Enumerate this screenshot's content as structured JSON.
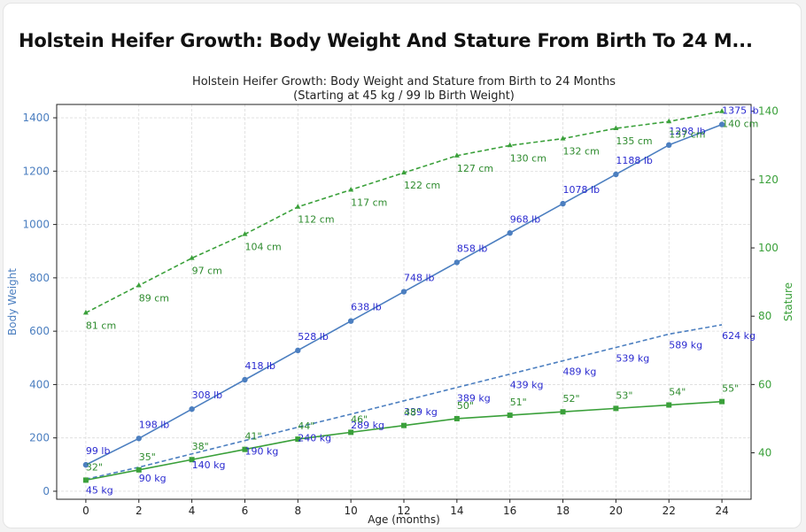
{
  "card": {
    "title": "Holstein Heifer Growth: Body Weight And Stature From Birth To 24 M..."
  },
  "colors": {
    "weight": "#4c7fc0",
    "stature": "#3aa03a",
    "point_label": "#2b2bd0",
    "stature_label": "#2e8b2e"
  },
  "chart_data": {
    "type": "line",
    "title": "Holstein Heifer Growth: Body Weight and Stature from Birth to 24 Months",
    "subtitle": "(Starting at 45 kg / 99 lb Birth Weight)",
    "xlabel": "Age (months)",
    "ylabel_left": "Body Weight",
    "ylabel_right": "Stature",
    "x": [
      0,
      2,
      4,
      6,
      8,
      10,
      12,
      14,
      16,
      18,
      20,
      22,
      24
    ],
    "xlim": [
      -1.1,
      25.1
    ],
    "ylim_left": [
      -30,
      1450
    ],
    "ylim_right": [
      26.4,
      142
    ],
    "yticks_left": [
      0,
      200,
      400,
      600,
      800,
      1000,
      1200,
      1400
    ],
    "yticks_right": [
      40,
      60,
      80,
      100,
      120,
      140
    ],
    "grid": true,
    "series": [
      {
        "axis": "left",
        "style": "solid",
        "marker": "circle",
        "values": [
          99,
          198,
          308,
          418,
          528,
          638,
          748,
          858,
          968,
          1078,
          1188,
          1298,
          1375
        ],
        "labels": [
          "99 lb",
          "198 lb",
          "308 lb",
          "418 lb",
          "528 lb",
          "638 lb",
          "748 lb",
          "858 lb",
          "968 lb",
          "1078 lb",
          "1188 lb",
          "1298 lb",
          "1375 lb"
        ]
      },
      {
        "axis": "left",
        "style": "dashed",
        "marker": "none",
        "values": [
          45,
          90,
          140,
          190,
          240,
          289,
          339,
          389,
          439,
          489,
          539,
          589,
          624
        ],
        "labels": [
          "45 kg",
          "90 kg",
          "140 kg",
          "190 kg",
          "240 kg",
          "289 kg",
          "339 kg",
          "389 kg",
          "439 kg",
          "489 kg",
          "539 kg",
          "589 kg",
          "624 kg"
        ]
      },
      {
        "axis": "right",
        "style": "dashed",
        "marker": "triangle",
        "values": [
          81,
          89,
          97,
          104,
          112,
          117,
          122,
          127,
          130,
          132,
          135,
          137,
          140
        ],
        "labels": [
          "81 cm",
          "89 cm",
          "97 cm",
          "104 cm",
          "112 cm",
          "117 cm",
          "122 cm",
          "127 cm",
          "130 cm",
          "132 cm",
          "135 cm",
          "137 cm",
          "140 cm"
        ]
      },
      {
        "axis": "right",
        "style": "solid",
        "marker": "square",
        "values": [
          32,
          35,
          38,
          41,
          44,
          46,
          48,
          50,
          51,
          52,
          53,
          54,
          55
        ],
        "labels": [
          "32\"",
          "35\"",
          "38\"",
          "41\"",
          "44\"",
          "46\"",
          "48\"",
          "50\"",
          "51\"",
          "52\"",
          "53\"",
          "54\"",
          "55\""
        ]
      }
    ]
  }
}
